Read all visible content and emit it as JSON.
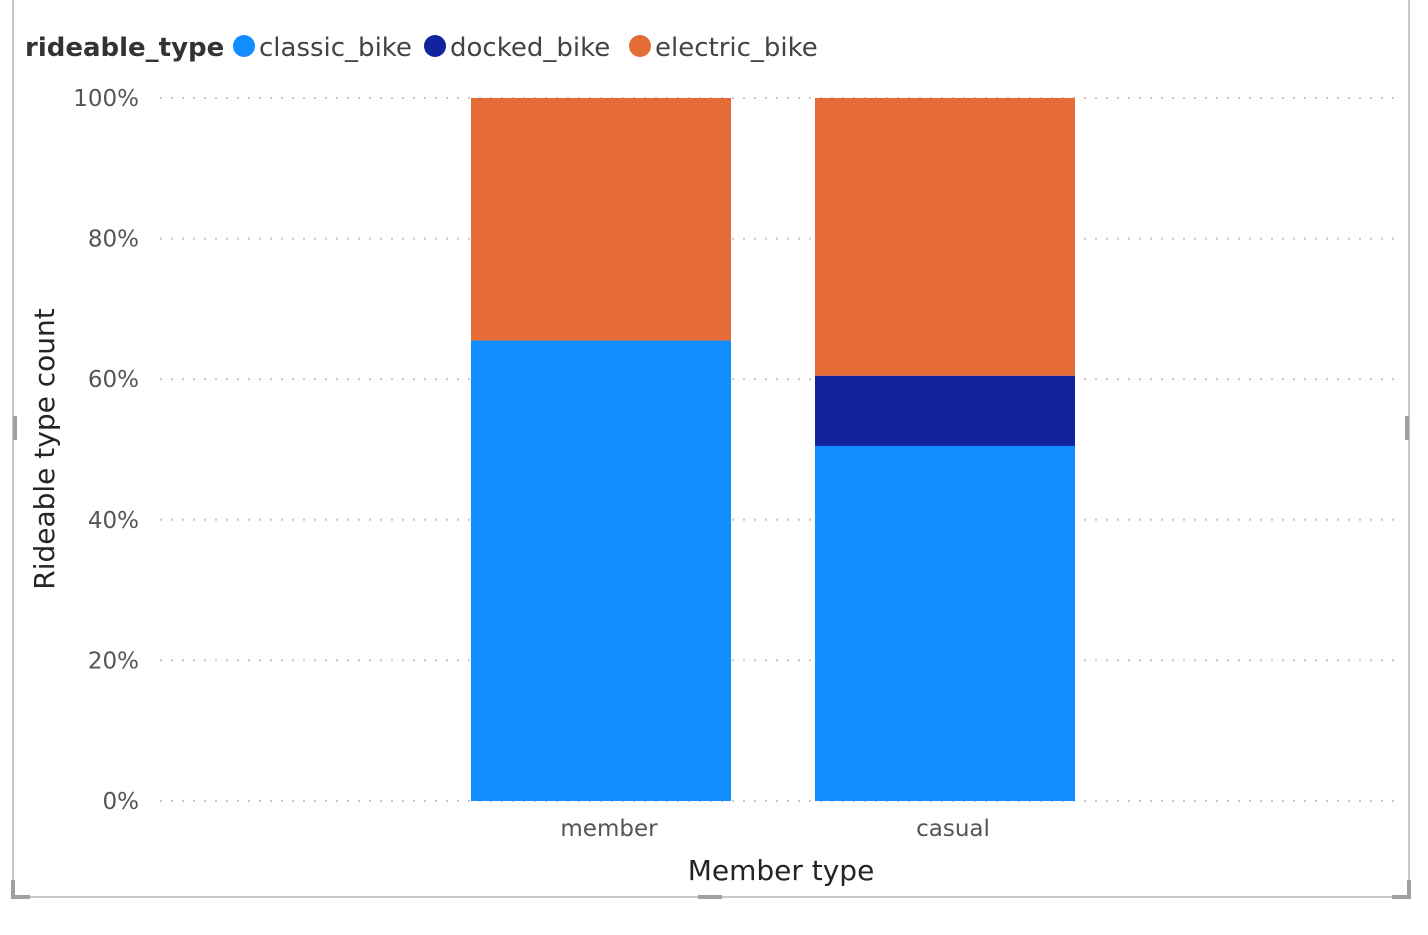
{
  "chart_data": {
    "type": "bar",
    "stacked": "100%",
    "categories": [
      "member",
      "casual"
    ],
    "series": [
      {
        "name": "classic_bike",
        "color": "#118DFF",
        "values": [
          65.5,
          50.5
        ]
      },
      {
        "name": "docked_bike",
        "color": "#12239E",
        "values": [
          0,
          10.0
        ]
      },
      {
        "name": "electric_bike",
        "color": "#E66C37",
        "values": [
          34.5,
          39.5
        ]
      }
    ],
    "legend_title": "rideable_type",
    "xlabel": "Member type",
    "ylabel": "Rideable type count",
    "ylim": [
      0,
      100
    ],
    "yticks": [
      "0%",
      "20%",
      "40%",
      "60%",
      "80%",
      "100%"
    ],
    "grid": true,
    "legend_position": "top-left"
  }
}
